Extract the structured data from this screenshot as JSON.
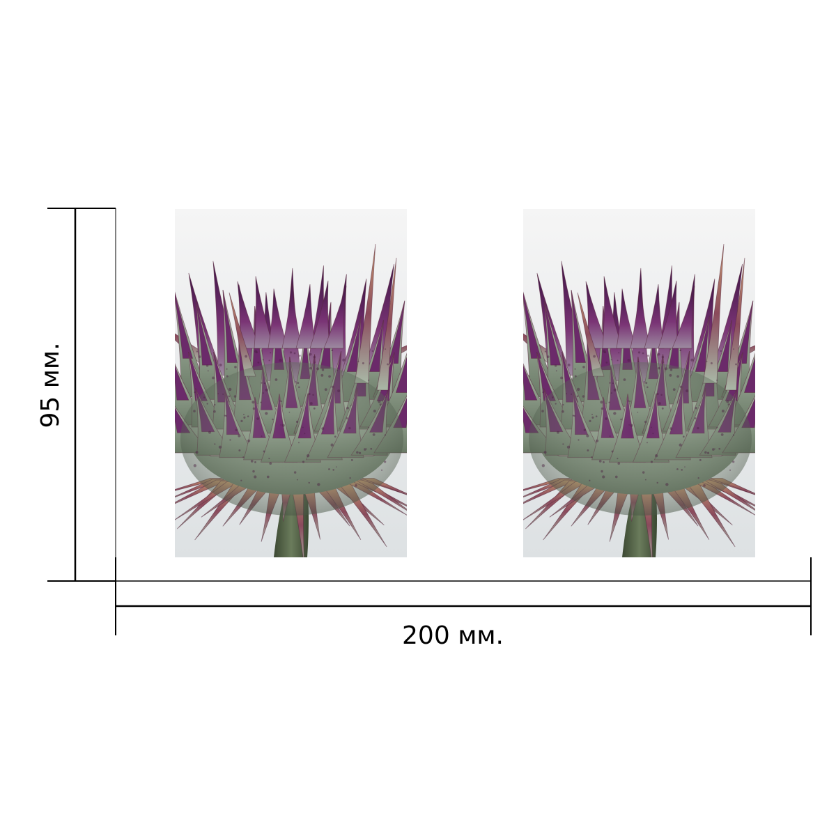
{
  "dimensions": {
    "height_label": "95 мм.",
    "width_label": "200 мм."
  },
  "product": {
    "image_subject": "artichoke-thistle-flower-photo",
    "print_count": 2
  },
  "colors": {
    "line": "#000000",
    "background": "#ffffff",
    "photo_background_top": "#f4f4f4",
    "photo_background_bottom": "#dfe2e4",
    "bract_green": "#a9b8a6",
    "bract_green_dark": "#5f6f5c",
    "bract_purple": "#6b2a6a",
    "bract_purple_dark": "#3e1445",
    "spine_tip": "#b9875d",
    "stem": "#4a5a3f"
  }
}
